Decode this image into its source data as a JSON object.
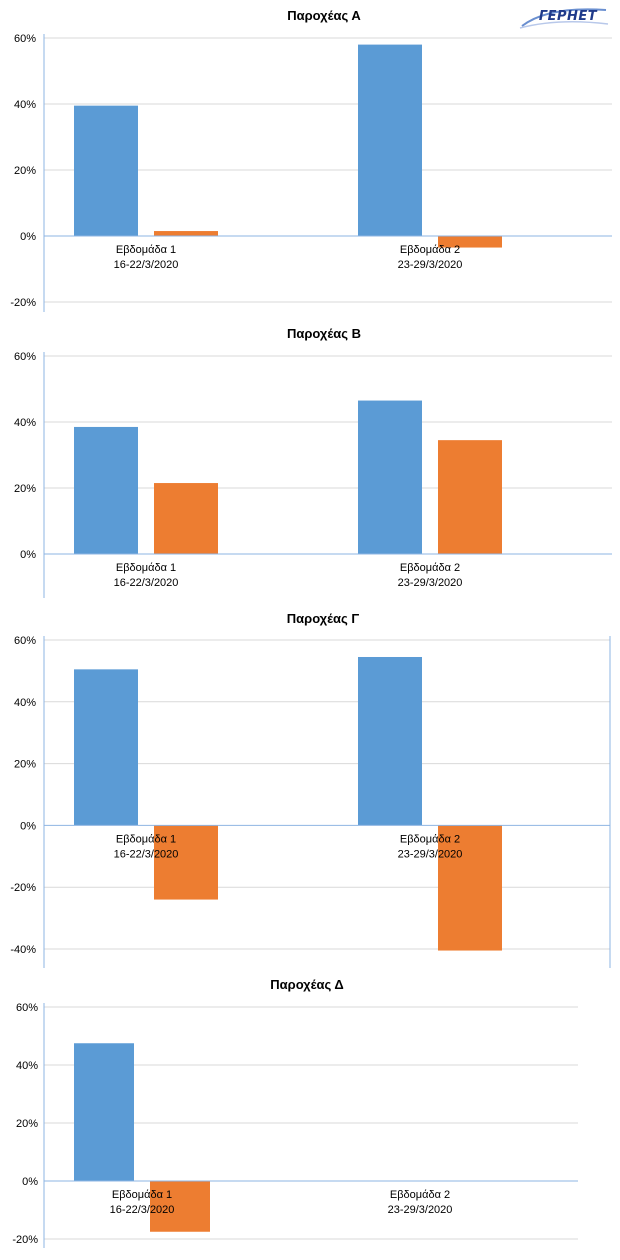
{
  "logo": {
    "text": "ΓΕΡΗΕΤ",
    "color": "#1f3a8a"
  },
  "colors": {
    "series1": "#5b9bd5",
    "series2": "#ed7d31",
    "grid": "#d9d9d9",
    "axis": "#8eb4e3"
  },
  "chart_data": [
    {
      "type": "bar",
      "title": "Παροχέας Α",
      "categories": [
        [
          "Εβδομάδα 1",
          "16-22/3/2020"
        ],
        [
          "Εβδομάδα 2",
          "23-29/3/2020"
        ]
      ],
      "series": [
        {
          "values": [
            39.5,
            58
          ]
        },
        {
          "values": [
            1.5,
            -3.5
          ]
        }
      ],
      "ylim": [
        -20,
        60
      ],
      "yticks": [
        "60%",
        "40%",
        "20%",
        "0%",
        "-20%"
      ],
      "grid": true
    },
    {
      "type": "bar",
      "title": "Παροχέας Β",
      "categories": [
        [
          "Εβδομάδα 1",
          "16-22/3/2020"
        ],
        [
          "Εβδομάδα 2",
          "23-29/3/2020"
        ]
      ],
      "series": [
        {
          "values": [
            38.5,
            46.5
          ]
        },
        {
          "values": [
            21.5,
            34.5
          ]
        }
      ],
      "ylim": [
        0,
        60
      ],
      "yticks": [
        "60%",
        "40%",
        "20%",
        "0%"
      ],
      "grid": true
    },
    {
      "type": "bar",
      "title": "Παροχέας Γ",
      "categories": [
        [
          "Εβδομάδα 1",
          "16-22/3/2020"
        ],
        [
          "Εβδομάδα 2",
          "23-29/3/2020"
        ]
      ],
      "series": [
        {
          "values": [
            50.5,
            54.5
          ]
        },
        {
          "values": [
            -24,
            -40.5
          ]
        }
      ],
      "ylim": [
        -40,
        60
      ],
      "yticks": [
        "60%",
        "40%",
        "20%",
        "0%",
        "-20%",
        "-40%"
      ],
      "grid": true
    },
    {
      "type": "bar",
      "title": "Παροχέας Δ",
      "categories": [
        [
          "Εβδομάδα 1",
          "16-22/3/2020"
        ],
        [
          "Εβδομάδα 2",
          "23-29/3/2020"
        ]
      ],
      "series": [
        {
          "values": [
            47.5,
            null
          ]
        },
        {
          "values": [
            -17.5,
            null
          ]
        }
      ],
      "ylim": [
        -20,
        60
      ],
      "yticks": [
        "60%",
        "40%",
        "20%",
        "0%",
        "-20%"
      ],
      "grid": true
    }
  ]
}
